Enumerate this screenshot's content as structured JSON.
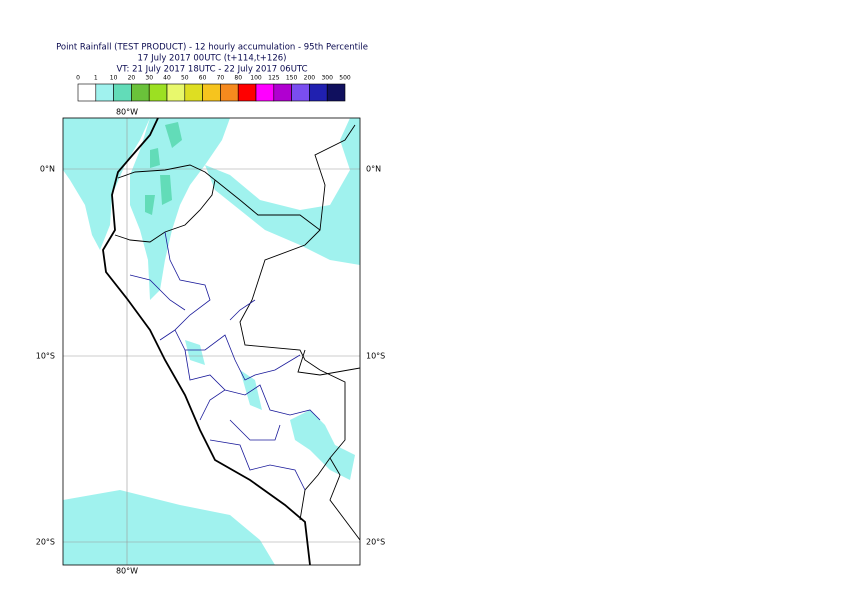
{
  "title_lines": [
    "Point Rainfall (TEST PRODUCT) - 12 hourly accumulation - 95th Percentile",
    "17 July 2017 00UTC (t+114,t+126)",
    "VT: 21 July 2017 18UTC - 22 July 2017 06UTC"
  ],
  "legend": {
    "labels": [
      0,
      1,
      10,
      20,
      30,
      40,
      50,
      60,
      70,
      80,
      100,
      125,
      150,
      200,
      300,
      500
    ],
    "colors": [
      "#ffffff",
      "#a0f2ee",
      "#62dcb8",
      "#6ac23a",
      "#9ce022",
      "#e8f86c",
      "#dede22",
      "#f6c41e",
      "#f68a1e",
      "#ff0000",
      "#ff00ff",
      "#b000d0",
      "#7a4ef0",
      "#2020b0",
      "#10105e"
    ]
  },
  "map": {
    "longitude_label": "80°W",
    "latitude_labels": [
      "0°N",
      "10°S",
      "20°S"
    ]
  }
}
